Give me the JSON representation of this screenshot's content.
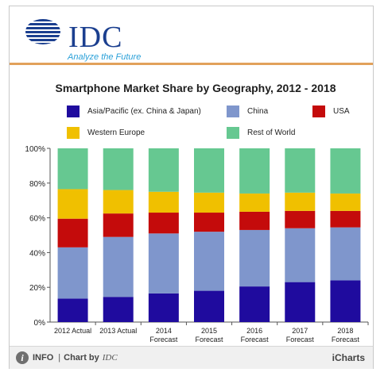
{
  "header": {
    "logo_text": "IDC",
    "tagline": "Analyze the Future"
  },
  "footer": {
    "info_label": "INFO",
    "separator": "|",
    "chart_by_label": "Chart by",
    "chart_by_brand": "IDC",
    "icharts_label": "iCharts"
  },
  "colors": {
    "header_rule": "#e2a15b",
    "logo_blue": "#1b3f8f",
    "tagline_blue": "#2aa0d8"
  },
  "chart_data": {
    "type": "bar",
    "stacked": true,
    "title": "Smartphone Market Share by Geography, 2012 - 2018",
    "xlabel": "",
    "ylabel": "",
    "ylim": [
      0,
      100
    ],
    "y_ticks": [
      "0%",
      "20%",
      "40%",
      "60%",
      "80%",
      "100%"
    ],
    "categories": [
      [
        "2012 Actual"
      ],
      [
        "2013 Actual"
      ],
      [
        "2014",
        "Forecast"
      ],
      [
        "2015",
        "Forecast"
      ],
      [
        "2016",
        "Forecast"
      ],
      [
        "2017",
        "Forecast"
      ],
      [
        "2018",
        "Forecast"
      ]
    ],
    "series": [
      {
        "name": "Asia/Pacific (ex. China & Japan)",
        "color": "#1f0b9e",
        "values": [
          13.5,
          14.5,
          16.5,
          18,
          20.5,
          23,
          24
        ]
      },
      {
        "name": "China",
        "color": "#7f96cc",
        "values": [
          29.5,
          34.5,
          34.5,
          34,
          32.5,
          31,
          30.5
        ]
      },
      {
        "name": "USA",
        "color": "#c40b0b",
        "values": [
          16.5,
          13.5,
          12,
          11,
          10.5,
          10,
          9.5
        ]
      },
      {
        "name": "Western Europe",
        "color": "#f0c000",
        "values": [
          17,
          13.5,
          12,
          11.5,
          10.5,
          10.5,
          10
        ]
      },
      {
        "name": "Rest of World",
        "color": "#66c891",
        "values": [
          23.5,
          24,
          25,
          25.5,
          26,
          25.5,
          26
        ]
      }
    ],
    "grid": false,
    "legend_position": "top"
  }
}
